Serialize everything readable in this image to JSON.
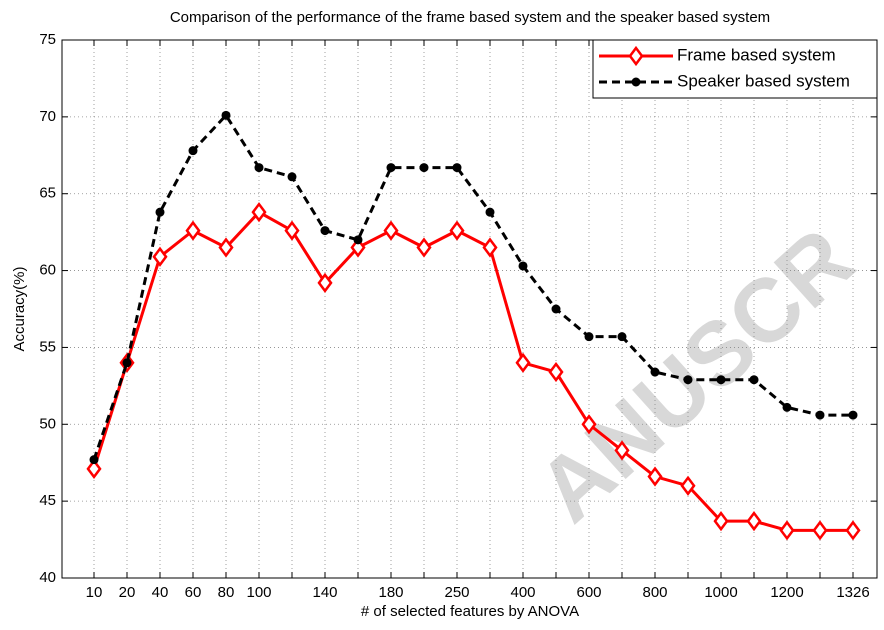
{
  "chart_data": {
    "type": "line",
    "title": "Comparison of the performance of the frame based system and the speaker based system",
    "x_label": "# of selected features by ANOVA",
    "y_label": "Accuracy(%)",
    "categories": [
      "10",
      "20",
      "40",
      "60",
      "80",
      "100",
      null,
      "140",
      null,
      "180",
      null,
      "250",
      null,
      "400",
      null,
      "600",
      null,
      "800",
      null,
      "1000",
      null,
      "1200",
      null,
      "1326"
    ],
    "series": [
      {
        "name": "Frame based system",
        "color": "#ff0000",
        "marker": "diamond",
        "dash": "solid",
        "values": [
          47.1,
          54.0,
          60.9,
          62.6,
          61.5,
          63.8,
          62.6,
          59.2,
          61.5,
          62.6,
          61.5,
          62.6,
          61.5,
          54.0,
          53.4,
          50.0,
          48.3,
          46.6,
          46.0,
          43.7,
          43.7,
          43.1,
          43.1,
          43.1
        ]
      },
      {
        "name": "Speaker based system",
        "color": "#000000",
        "marker": "circle",
        "dash": "dashed",
        "values": [
          47.7,
          54.0,
          63.8,
          67.8,
          70.1,
          66.7,
          66.1,
          62.6,
          62.0,
          66.7,
          66.7,
          66.7,
          63.8,
          60.3,
          57.5,
          55.7,
          55.7,
          53.4,
          52.9,
          52.9,
          52.9,
          51.1,
          50.6,
          50.6
        ]
      }
    ],
    "ylim": [
      40,
      75
    ],
    "yticks": [
      40,
      45,
      50,
      55,
      60,
      65,
      70,
      75
    ],
    "grid": true,
    "legend": "upper-right",
    "watermark": "ANUSCR"
  }
}
